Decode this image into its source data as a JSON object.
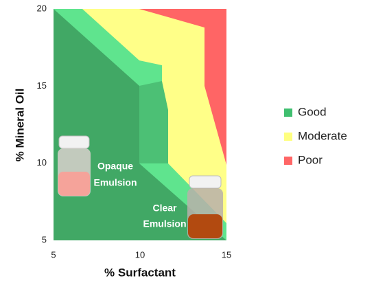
{
  "chart_data": {
    "type": "region",
    "xlabel": "% Surfactant",
    "ylabel": "% Mineral Oil",
    "xlim": [
      5,
      15
    ],
    "ylim": [
      5,
      20
    ],
    "xticks": [
      5,
      10,
      15
    ],
    "yticks": [
      5,
      10,
      15,
      20
    ],
    "series": [
      {
        "name": "Good",
        "color": "#3fbf6f"
      },
      {
        "name": "Moderate",
        "color": "#ffff80"
      },
      {
        "name": "Poor",
        "color": "#ff6666"
      }
    ],
    "annotations": [
      [
        "Opaque",
        "Emulsion"
      ],
      [
        "Clear",
        "Emulsion"
      ]
    ]
  }
}
